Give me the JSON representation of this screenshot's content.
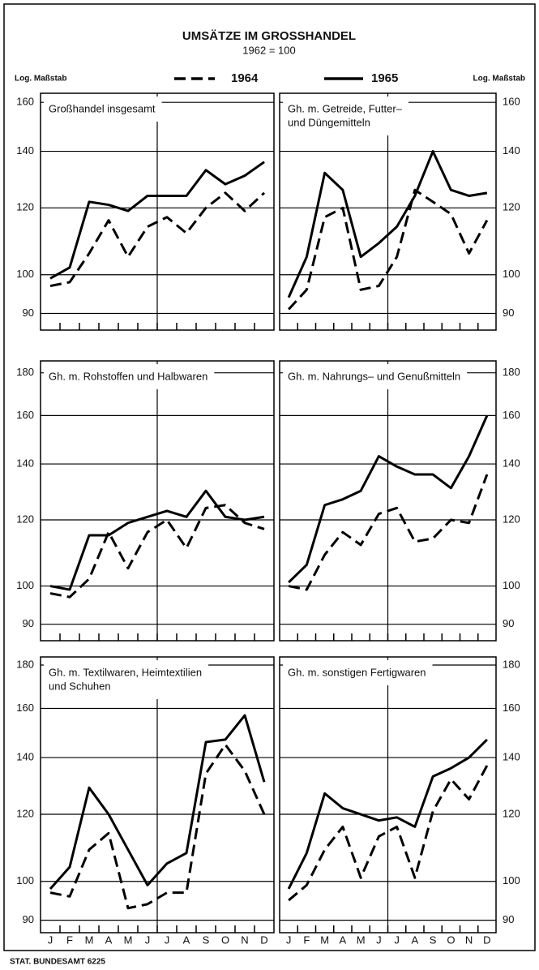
{
  "title": "UMSÄTZE IM GROSSHANDEL",
  "subtitle": "1962 = 100",
  "scale_note": "Log. Maßstab",
  "source": "STAT. BUNDESAMT 6225",
  "categories": [
    "J",
    "F",
    "M",
    "A",
    "M",
    "J",
    "J",
    "A",
    "S",
    "O",
    "N",
    "D"
  ],
  "legend": [
    {
      "name": "1964",
      "color": "#000000",
      "dashed": true
    },
    {
      "name": "1965",
      "color": "#000000",
      "dashed": false
    }
  ],
  "chart_data": [
    {
      "type": "line",
      "log_scale": true,
      "grid": true,
      "axis_side": "left",
      "title": [
        "Großhandel insgesamt"
      ],
      "ylim": [
        86,
        164
      ],
      "yticks": [
        90,
        100,
        120,
        140,
        160
      ],
      "series": [
        {
          "values": [
            97,
            98,
            106,
            116,
            105,
            114,
            117,
            112,
            120,
            125,
            119,
            125
          ]
        },
        {
          "values": [
            99,
            102,
            122,
            121,
            119,
            124,
            124,
            124,
            133,
            128,
            131,
            136
          ]
        }
      ]
    },
    {
      "type": "line",
      "log_scale": true,
      "grid": true,
      "axis_side": "right",
      "title": [
        "Gh. m. Getreide, Futter–",
        "und Düngemitteln"
      ],
      "ylim": [
        86,
        164
      ],
      "yticks": [
        90,
        100,
        120,
        140,
        160
      ],
      "series": [
        {
          "values": [
            91,
            96,
            117,
            120,
            96,
            97,
            105,
            126,
            122,
            118,
            106,
            116
          ]
        },
        {
          "values": [
            94,
            105,
            132,
            126,
            105,
            109,
            114,
            124,
            140,
            126,
            124,
            125
          ]
        }
      ]
    },
    {
      "type": "line",
      "log_scale": true,
      "grid": true,
      "axis_side": "left",
      "title": [
        "Gh. m. Rohstoffen und Halbwaren"
      ],
      "ylim": [
        86,
        186
      ],
      "yticks": [
        90,
        100,
        120,
        140,
        160,
        180
      ],
      "series": [
        {
          "values": [
            98,
            97,
            102,
            116,
            105,
            116,
            120,
            111,
            124,
            125,
            119,
            117
          ]
        },
        {
          "values": [
            100,
            99,
            115,
            115,
            119,
            121,
            123,
            121,
            130,
            121,
            120,
            121
          ]
        }
      ]
    },
    {
      "type": "line",
      "log_scale": true,
      "grid": true,
      "axis_side": "right",
      "title": [
        "Gh. m. Nahrungs– und Genußmitteln"
      ],
      "ylim": [
        86,
        186
      ],
      "yticks": [
        90,
        100,
        120,
        140,
        160,
        180
      ],
      "series": [
        {
          "values": [
            100,
            99,
            109,
            116,
            112,
            122,
            124,
            113,
            114,
            120,
            119,
            136
          ]
        },
        {
          "values": [
            101,
            106,
            125,
            127,
            130,
            143,
            139,
            136,
            136,
            131,
            143,
            160
          ]
        }
      ]
    },
    {
      "type": "line",
      "log_scale": true,
      "grid": true,
      "axis_side": "left",
      "title": [
        "Gh. m. Textilwaren, Heimtextilien",
        "und Schuhen"
      ],
      "ylim": [
        87,
        184
      ],
      "yticks": [
        90,
        100,
        120,
        140,
        160,
        180
      ],
      "series": [
        {
          "values": [
            97,
            96,
            109,
            114,
            93,
            94,
            97,
            97,
            134,
            145,
            135,
            120
          ]
        },
        {
          "values": [
            98,
            104,
            129,
            120,
            109,
            99,
            105,
            108,
            146,
            147,
            157,
            131
          ]
        }
      ]
    },
    {
      "type": "line",
      "log_scale": true,
      "grid": true,
      "axis_side": "right",
      "title": [
        "Gh. m. sonstigen Fertigwaren"
      ],
      "ylim": [
        87,
        184
      ],
      "yticks": [
        90,
        100,
        120,
        140,
        160,
        180
      ],
      "series": [
        {
          "values": [
            95,
            99,
            109,
            116,
            101,
            113,
            116,
            101,
            121,
            132,
            125,
            137
          ]
        },
        {
          "values": [
            98,
            108,
            127,
            122,
            120,
            118,
            119,
            116,
            133,
            136,
            140,
            147
          ]
        }
      ]
    }
  ]
}
